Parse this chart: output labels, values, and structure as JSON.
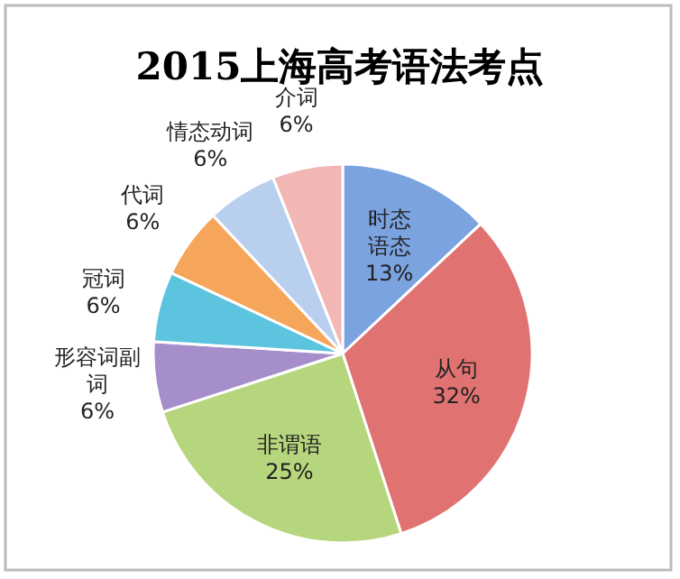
{
  "chart_data": {
    "type": "pie",
    "title": "2015上海高考语法考点",
    "categories": [
      "时态语态",
      "从句",
      "非谓语",
      "形容词副词",
      "冠词",
      "代词",
      "情态动词",
      "介词"
    ],
    "values": [
      13,
      32,
      25,
      6,
      6,
      6,
      6,
      6
    ],
    "colors": [
      "#7ba3e0",
      "#e07272",
      "#b5d67c",
      "#a58ec9",
      "#5cc4de",
      "#f5a65b",
      "#b9cfee",
      "#f2b6b4"
    ],
    "value_labels": [
      "13%",
      "32%",
      "25%",
      "6%",
      "6%",
      "6%",
      "6%",
      "6%"
    ]
  }
}
